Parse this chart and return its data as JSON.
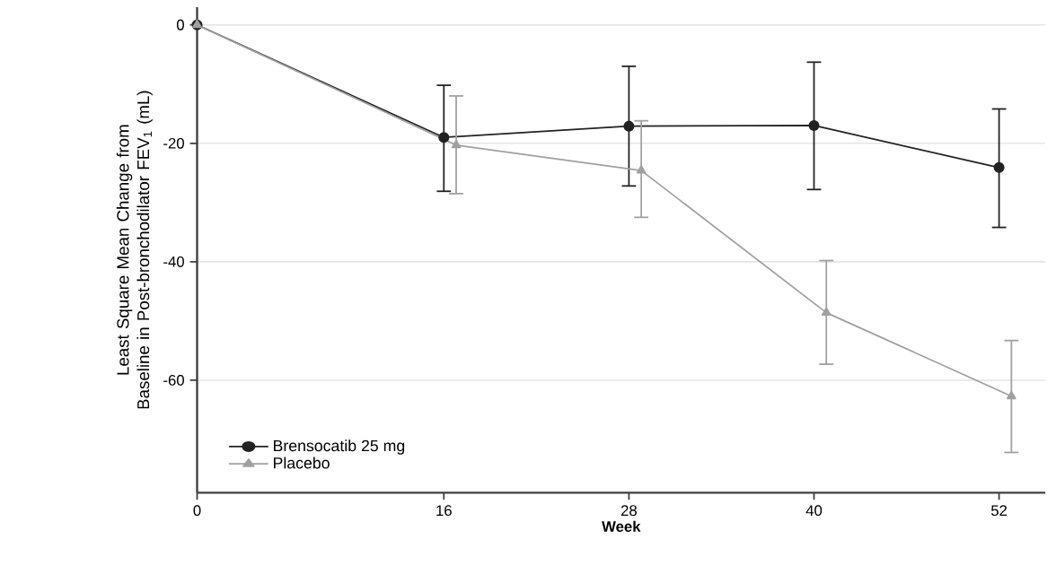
{
  "chart_data": {
    "type": "line",
    "xlabel": "Week",
    "ylabel": "Least Square Mean Change from Baseline in Post-bronchodilator FEV$_{1}$ (mL)",
    "xlim": [
      0,
      55
    ],
    "xticks": [
      0,
      16,
      28,
      40,
      52
    ],
    "ylim": [
      -79,
      3
    ],
    "yticks": [
      0,
      -20,
      -40,
      -60
    ],
    "grid": "y",
    "legend": "bottom left",
    "series": [
      {
        "name": "Brensocatib 25 mg",
        "color": "#222222",
        "marker": "circle",
        "x": [
          0,
          16,
          28,
          40,
          52
        ],
        "values": [
          0,
          -19,
          -17.1,
          -17,
          -24.1
        ],
        "errors": [
          null,
          [
            -28.1,
            -10.2
          ],
          [
            -27.2,
            -7
          ],
          [
            -27.8,
            -6.3
          ],
          [
            -34.2,
            -14.2
          ]
        ]
      },
      {
        "name": "Placebo",
        "color": "#a0a0a0",
        "marker": "triangle",
        "x": [
          0,
          16.8,
          28.8,
          40.8,
          52.8
        ],
        "values": [
          0,
          -20.3,
          -24.6,
          -48.6,
          -62.7
        ],
        "errors": [
          null,
          [
            -28.5,
            -12
          ],
          [
            -32.5,
            -16.2
          ],
          [
            -57.3,
            -39.8
          ],
          [
            -72.2,
            -53.3
          ]
        ]
      }
    ]
  }
}
